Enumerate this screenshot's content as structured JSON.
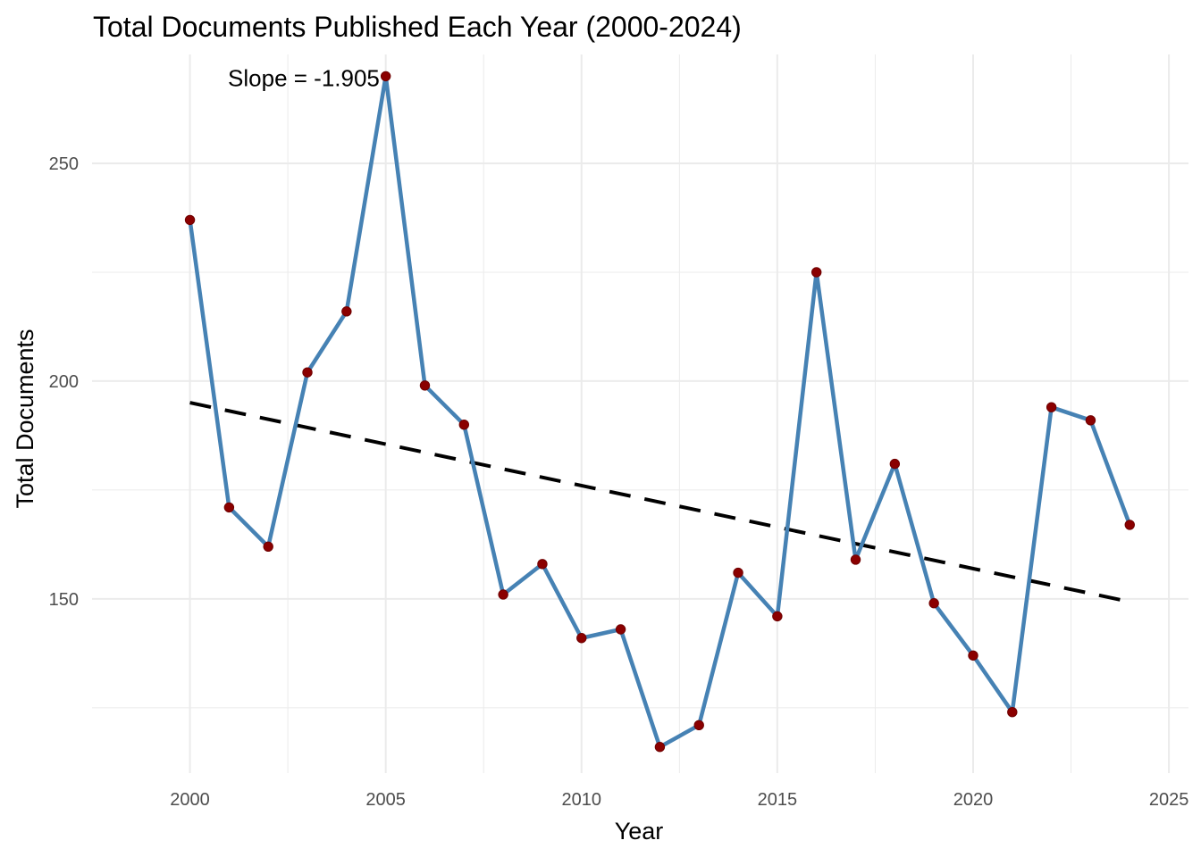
{
  "chart_data": {
    "type": "line",
    "title": "Total Documents Published Each Year (2000-2024)",
    "xlabel": "Year",
    "ylabel": "Total Documents",
    "xlim": [
      1997.5,
      2025.5
    ],
    "ylim": [
      110,
      275
    ],
    "x_ticks": [
      2000,
      2005,
      2010,
      2015,
      2020,
      2025
    ],
    "x_minor_ticks": [
      2002.5,
      2007.5,
      2012.5,
      2017.5,
      2022.5
    ],
    "y_ticks": [
      150,
      200,
      250
    ],
    "y_minor_ticks": [
      125,
      175,
      225
    ],
    "grid": true,
    "x": [
      2000,
      2001,
      2002,
      2003,
      2004,
      2005,
      2006,
      2007,
      2008,
      2009,
      2010,
      2011,
      2012,
      2013,
      2014,
      2015,
      2016,
      2017,
      2018,
      2019,
      2020,
      2021,
      2022,
      2023,
      2024
    ],
    "y": [
      237,
      171,
      162,
      202,
      216,
      270,
      199,
      190,
      151,
      158,
      141,
      143,
      116,
      121,
      156,
      146,
      225,
      159,
      181,
      149,
      137,
      124,
      194,
      191,
      167
    ],
    "trend": {
      "slope": -1.905,
      "x": [
        2000,
        2024
      ],
      "y": [
        195.05,
        149.33
      ]
    },
    "annotation": {
      "text": "Slope = -1.905",
      "x": 2004.8,
      "y": 270
    },
    "colors": {
      "line": "#4682b4",
      "points": "#8b0000",
      "trend": "#000000",
      "grid": "#ebebeb"
    }
  }
}
